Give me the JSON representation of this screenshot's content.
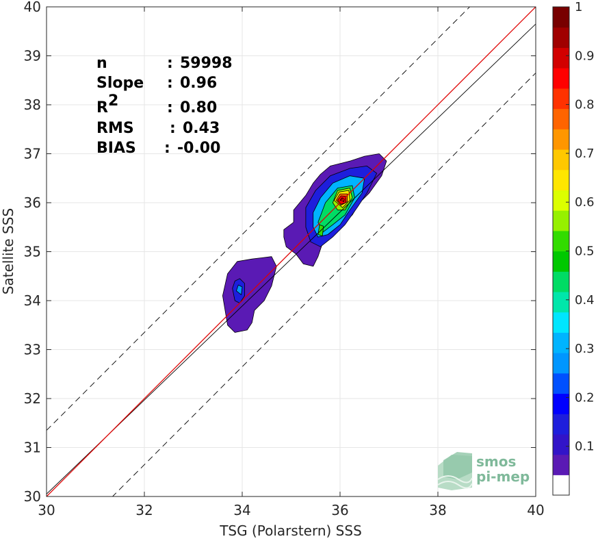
{
  "chart_data": {
    "type": "heatmap",
    "title": "",
    "xlabel": "TSG (Polarstern) SSS",
    "ylabel": "Satellite SSS",
    "xlim": [
      30,
      40
    ],
    "ylim": [
      30,
      40
    ],
    "xticks": [
      "30",
      "32",
      "34",
      "36",
      "38",
      "40"
    ],
    "yticks": [
      "30",
      "31",
      "32",
      "33",
      "34",
      "35",
      "36",
      "37",
      "38",
      "39",
      "40"
    ],
    "grid": true,
    "legend": "colorbar-right",
    "colorbar": {
      "range": [
        0,
        1
      ],
      "ticks": [
        "0.1",
        "0.2",
        "0.3",
        "0.4",
        "0.5",
        "0.6",
        "0.7",
        "0.8",
        "0.9",
        "1"
      ],
      "colors": [
        "#ffffff",
        "#5a1ab4",
        "#3214c8",
        "#1e1edc",
        "#0000ff",
        "#0050ff",
        "#0096ff",
        "#00b4ff",
        "#00e6ff",
        "#00e6aa",
        "#00dc64",
        "#00c800",
        "#32dc00",
        "#96f000",
        "#dcff00",
        "#ffe600",
        "#ffc800",
        "#ff9600",
        "#ff6400",
        "#ff3200",
        "#ff0000",
        "#d20000",
        "#a00000",
        "#780000"
      ]
    },
    "lines": [
      {
        "type": "regression",
        "slope": 0.96,
        "intercept": 1.25,
        "color": "#000000",
        "style": "solid"
      },
      {
        "type": "identity",
        "slope": 1,
        "intercept": 0,
        "color": "#e00000",
        "style": "solid"
      },
      {
        "type": "bound-upper",
        "slope": 1,
        "intercept": 1.35,
        "color": "#000000",
        "style": "dashed"
      },
      {
        "type": "bound-lower",
        "slope": 1,
        "intercept": -1.35,
        "color": "#000000",
        "style": "dashed"
      }
    ],
    "density": [
      {
        "level": 0.05,
        "polygon": [
          [
            35.05,
            35.85
          ],
          [
            35.3,
            36.15
          ],
          [
            35.45,
            36.4
          ],
          [
            35.6,
            36.58
          ],
          [
            35.8,
            36.75
          ],
          [
            36.2,
            36.85
          ],
          [
            36.5,
            36.95
          ],
          [
            36.8,
            37.0
          ],
          [
            36.95,
            36.85
          ],
          [
            36.85,
            36.55
          ],
          [
            36.6,
            36.2
          ],
          [
            36.4,
            36.0
          ],
          [
            36.25,
            35.75
          ],
          [
            36.05,
            35.55
          ],
          [
            35.85,
            35.4
          ],
          [
            35.65,
            35.2
          ],
          [
            35.55,
            34.9
          ],
          [
            35.45,
            34.7
          ],
          [
            35.25,
            34.75
          ],
          [
            35.1,
            34.95
          ],
          [
            34.9,
            35.1
          ],
          [
            34.85,
            35.3
          ],
          [
            34.85,
            35.45
          ],
          [
            35.05,
            35.6
          ]
        ]
      },
      {
        "level": 0.05,
        "polygon": [
          [
            33.6,
            34.1
          ],
          [
            33.7,
            34.55
          ],
          [
            33.9,
            34.8
          ],
          [
            34.2,
            34.85
          ],
          [
            34.6,
            34.9
          ],
          [
            34.7,
            34.7
          ],
          [
            34.6,
            34.3
          ],
          [
            34.45,
            34.0
          ],
          [
            34.25,
            33.8
          ],
          [
            34.2,
            33.55
          ],
          [
            34.1,
            33.4
          ],
          [
            33.85,
            33.35
          ],
          [
            33.7,
            33.5
          ],
          [
            33.65,
            33.8
          ]
        ]
      },
      {
        "level": 0.15,
        "polygon": [
          [
            33.8,
            34.25
          ],
          [
            33.85,
            34.4
          ],
          [
            33.95,
            34.45
          ],
          [
            34.05,
            34.35
          ],
          [
            34.05,
            34.1
          ],
          [
            33.95,
            33.95
          ],
          [
            33.85,
            34.0
          ]
        ]
      },
      {
        "level": 0.25,
        "polygon": [
          [
            33.88,
            34.2
          ],
          [
            33.92,
            34.32
          ],
          [
            34.0,
            34.28
          ],
          [
            33.98,
            34.12
          ]
        ]
      },
      {
        "level": 0.15,
        "polygon": [
          [
            35.3,
            35.9
          ],
          [
            35.5,
            36.25
          ],
          [
            35.8,
            36.55
          ],
          [
            36.2,
            36.7
          ],
          [
            36.55,
            36.75
          ],
          [
            36.75,
            36.6
          ],
          [
            36.55,
            36.2
          ],
          [
            36.35,
            35.9
          ],
          [
            36.1,
            35.55
          ],
          [
            35.85,
            35.3
          ],
          [
            35.6,
            35.1
          ],
          [
            35.4,
            35.2
          ],
          [
            35.3,
            35.5
          ]
        ]
      },
      {
        "level": 0.3,
        "polygon": [
          [
            35.45,
            35.8
          ],
          [
            35.6,
            36.1
          ],
          [
            35.85,
            36.4
          ],
          [
            36.2,
            36.55
          ],
          [
            36.5,
            36.5
          ],
          [
            36.45,
            36.2
          ],
          [
            36.2,
            35.85
          ],
          [
            36.0,
            35.55
          ],
          [
            35.75,
            35.35
          ],
          [
            35.55,
            35.3
          ],
          [
            35.45,
            35.5
          ]
        ]
      },
      {
        "level": 0.45,
        "polygon": [
          [
            35.55,
            35.6
          ],
          [
            35.7,
            36.0
          ],
          [
            35.95,
            36.3
          ],
          [
            36.25,
            36.35
          ],
          [
            36.3,
            36.1
          ],
          [
            36.1,
            35.75
          ],
          [
            35.85,
            35.55
          ],
          [
            35.65,
            35.4
          ]
        ]
      },
      {
        "level": 0.5,
        "polygon": [
          [
            35.55,
            35.35
          ],
          [
            35.58,
            35.55
          ],
          [
            35.66,
            35.52
          ],
          [
            35.64,
            35.32
          ]
        ]
      },
      {
        "level": 0.55,
        "polygon": [
          [
            35.85,
            36.0
          ],
          [
            35.95,
            36.25
          ],
          [
            36.2,
            36.3
          ],
          [
            36.25,
            36.1
          ],
          [
            36.1,
            35.85
          ],
          [
            35.95,
            35.85
          ]
        ]
      },
      {
        "level": 0.65,
        "polygon": [
          [
            35.88,
            36.05
          ],
          [
            35.98,
            36.22
          ],
          [
            36.18,
            36.25
          ],
          [
            36.2,
            36.05
          ],
          [
            36.05,
            35.9
          ]
        ]
      },
      {
        "level": 0.75,
        "polygon": [
          [
            35.92,
            36.05
          ],
          [
            36.0,
            36.18
          ],
          [
            36.15,
            36.18
          ],
          [
            36.15,
            36.02
          ],
          [
            36.02,
            35.95
          ]
        ]
      },
      {
        "level": 0.85,
        "polygon": [
          [
            35.95,
            36.05
          ],
          [
            36.02,
            36.14
          ],
          [
            36.12,
            36.13
          ],
          [
            36.12,
            36.0
          ],
          [
            36.02,
            35.97
          ]
        ]
      },
      {
        "level": 0.95,
        "polygon": [
          [
            36.0,
            36.05
          ],
          [
            36.04,
            36.1
          ],
          [
            36.09,
            36.08
          ],
          [
            36.08,
            36.02
          ]
        ]
      }
    ],
    "annotations": [
      {
        "label": "n",
        "sep": ": ",
        "value": "59998"
      },
      {
        "label": "Slope",
        "sep": ": ",
        "value": "0.96"
      },
      {
        "label": "R",
        "sup": "2",
        "sep": ": ",
        "value": "0.80"
      },
      {
        "label": "RMS",
        "sep": ": ",
        "value": "0.43"
      },
      {
        "label": "BIAS",
        "sep": ": ",
        "value": "-0.00"
      }
    ]
  },
  "watermark": {
    "line1": "smos",
    "line2": "pi-mep",
    "icon": "smos-pimep-logo-icon"
  }
}
